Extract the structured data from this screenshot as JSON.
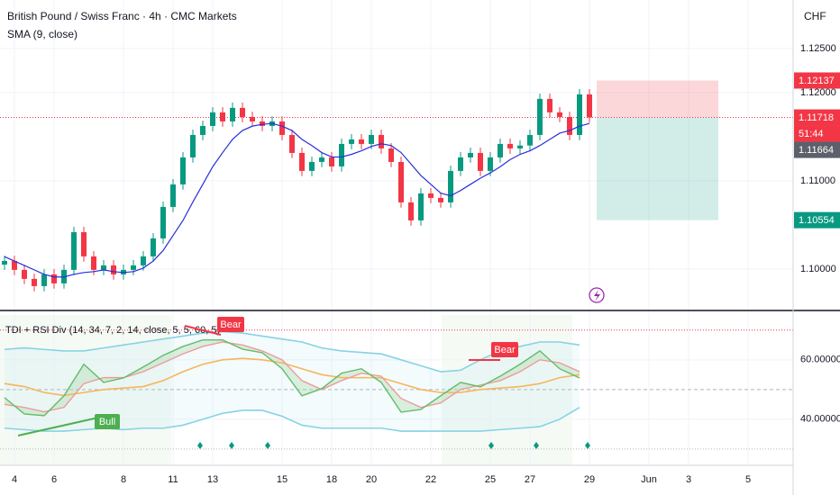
{
  "header": {
    "title": "British Pound / Swiss Franc · 4h · CMC Markets",
    "currency": "CHF"
  },
  "chart_data": [
    {
      "type": "candlestick",
      "categories": [
        null,
        "4",
        null,
        null,
        null,
        "6",
        null,
        null,
        null,
        null,
        null,
        null,
        "8",
        null,
        null,
        null,
        null,
        "11",
        null,
        null,
        null,
        "13",
        null,
        null,
        null,
        null,
        null,
        null,
        "15",
        null,
        null,
        null,
        null,
        "18",
        null,
        null,
        null,
        "20",
        null,
        null,
        null,
        null,
        null,
        "22",
        null,
        null,
        null,
        null,
        null,
        "25",
        null,
        null,
        null,
        "27",
        null,
        null,
        null,
        null,
        null,
        "29"
      ],
      "open": [
        1.1005,
        1.10092,
        1.0999,
        1.09888,
        1.09806,
        1.09939,
        1.09837,
        1.0999,
        1.10418,
        1.10143,
        1.0999,
        1.10041,
        1.09939,
        1.0999,
        1.10041,
        1.10143,
        1.10347,
        1.10704,
        1.10959,
        1.11265,
        1.1152,
        1.11622,
        1.11776,
        1.11673,
        1.11827,
        1.11724,
        1.11673,
        1.11622,
        1.11673,
        1.1152,
        1.11316,
        1.11112,
        1.11214,
        1.11265,
        1.11163,
        1.11418,
        1.11469,
        1.11418,
        1.1152,
        1.11367,
        1.11214,
        1.10755,
        1.10551,
        1.10857,
        1.10806,
        1.10755,
        1.11112,
        1.11265,
        1.11316,
        1.11112,
        1.11265,
        1.11418,
        1.11367,
        1.114,
        1.1152,
        1.11929,
        1.11776,
        1.11724,
        1.1152,
        1.1198
      ],
      "high": [
        1.10152,
        1.10152,
        1.1005,
        1.09948,
        1.09999,
        1.09999,
        1.1005,
        1.10478,
        1.10478,
        1.10203,
        1.10101,
        1.10101,
        1.1005,
        1.10101,
        1.10203,
        1.10407,
        1.10764,
        1.11019,
        1.11325,
        1.1158,
        1.11682,
        1.11836,
        1.11836,
        1.11887,
        1.11887,
        1.11784,
        1.11733,
        1.11733,
        1.11733,
        1.1158,
        1.11376,
        1.11274,
        1.11325,
        1.11325,
        1.11478,
        1.11529,
        1.11529,
        1.1158,
        1.1158,
        1.11427,
        1.11274,
        1.10815,
        1.10917,
        1.10917,
        1.10866,
        1.11172,
        1.11325,
        1.11376,
        1.11376,
        1.11325,
        1.11478,
        1.11478,
        1.1146,
        1.1158,
        1.11989,
        1.11989,
        1.11836,
        1.11784,
        1.1204,
        1.1204
      ],
      "low": [
        1.0999,
        1.0993,
        1.09828,
        1.09746,
        1.09746,
        1.09777,
        1.09777,
        1.0993,
        1.10083,
        1.0993,
        1.0993,
        1.09879,
        1.09879,
        1.0993,
        1.09981,
        1.10083,
        1.10287,
        1.10644,
        1.10899,
        1.11205,
        1.1146,
        1.11562,
        1.11613,
        1.11613,
        1.11664,
        1.11613,
        1.11562,
        1.11562,
        1.1146,
        1.11256,
        1.11052,
        1.11052,
        1.11154,
        1.11103,
        1.11103,
        1.11358,
        1.11358,
        1.11358,
        1.11307,
        1.11154,
        1.10695,
        1.10491,
        1.10491,
        1.10746,
        1.10695,
        1.10695,
        1.11052,
        1.11205,
        1.11052,
        1.11052,
        1.11205,
        1.11307,
        1.11307,
        1.1134,
        1.1146,
        1.11716,
        1.11664,
        1.1146,
        1.1146,
        1.11658
      ],
      "close": [
        1.10092,
        1.0999,
        1.09888,
        1.09806,
        1.09939,
        1.09837,
        1.0999,
        1.10418,
        1.10143,
        1.0999,
        1.10041,
        1.09939,
        1.0999,
        1.10041,
        1.10143,
        1.10347,
        1.10704,
        1.10959,
        1.11265,
        1.1152,
        1.11622,
        1.11776,
        1.11673,
        1.11827,
        1.11724,
        1.11673,
        1.11622,
        1.11673,
        1.1152,
        1.11316,
        1.11112,
        1.11214,
        1.11265,
        1.11163,
        1.11418,
        1.11469,
        1.11418,
        1.1152,
        1.11367,
        1.11214,
        1.10755,
        1.10551,
        1.10857,
        1.10806,
        1.10755,
        1.11112,
        1.11265,
        1.11316,
        1.11112,
        1.11265,
        1.11418,
        1.11367,
        1.114,
        1.1152,
        1.11929,
        1.11776,
        1.11724,
        1.1152,
        1.1198,
        1.11718
      ],
      "series": [
        {
          "name": "SMA (9, close)",
          "color": "#2a2edb",
          "values": [
            1.1014,
            1.1009,
            1.1004,
            1.0999,
            1.0994,
            1.0991,
            1.0991,
            1.0994,
            1.0996,
            1.0997,
            1.0999,
            1.0997,
            1.0996,
            1.0997,
            1.1001,
            1.1009,
            1.1021,
            1.1038,
            1.1055,
            1.1076,
            1.1096,
            1.1116,
            1.1132,
            1.1147,
            1.1157,
            1.1162,
            1.1164,
            1.1165,
            1.1162,
            1.1157,
            1.1147,
            1.114,
            1.1132,
            1.1127,
            1.1127,
            1.113,
            1.1134,
            1.1139,
            1.1142,
            1.114,
            1.1132,
            1.1119,
            1.1106,
            1.1096,
            1.1086,
            1.1083,
            1.1089,
            1.1096,
            1.1103,
            1.1109,
            1.1116,
            1.1124,
            1.113,
            1.1134,
            1.114,
            1.1147,
            1.1154,
            1.1157,
            1.1162,
            1.1165
          ]
        }
      ],
      "up_color": "#089981",
      "down_color": "#f23645",
      "ylim": [
        1.0955,
        1.1305
      ],
      "yticks": [
        {
          "value": 1.125,
          "label": "1.12500"
        },
        {
          "value": 1.12,
          "label": "1.12000"
        },
        {
          "value": 1.11,
          "label": "1.11000"
        },
        {
          "value": 1.1,
          "label": "1.10000"
        }
      ],
      "price_markers": [
        {
          "value": 1.12137,
          "color": "#f23645"
        },
        {
          "value": 1.11718,
          "color": "#f23645"
        },
        {
          "value": 1.11664,
          "color": "#5d606b"
        },
        {
          "value": 1.10554,
          "color": "#089981"
        }
      ],
      "countdown": "51:44",
      "future_labels": [
        "Jun",
        "3",
        "5"
      ]
    },
    {
      "type": "line",
      "title": "TDI + RSI Div (14, 34, 7, 2, 14, close, 5, 5, 60, 5)",
      "series": [
        {
          "color": "#86d3e3",
          "values": [
            63.5,
            64,
            63.5,
            63,
            63,
            64,
            65,
            66,
            67,
            68,
            69,
            69.5,
            69,
            68,
            67,
            66,
            64,
            63,
            62.5,
            62,
            60,
            58,
            56,
            56.5,
            60,
            63,
            64.5,
            66,
            66,
            65
          ]
        },
        {
          "color": "#86d3e3",
          "values": [
            37,
            36.5,
            36,
            36,
            36.5,
            37,
            36.5,
            37,
            37,
            38,
            40,
            42,
            43,
            43,
            41,
            38,
            37,
            37,
            37,
            37,
            36,
            36,
            36,
            36,
            36,
            36.5,
            37,
            37.5,
            40,
            44
          ]
        },
        {
          "color": "#f7b55a",
          "values": [
            52,
            51,
            49,
            48,
            49,
            50,
            50.5,
            51,
            53,
            56,
            58.5,
            60,
            60.5,
            60,
            59,
            57,
            55,
            54,
            54,
            54,
            52,
            50,
            49,
            49,
            50,
            50.5,
            51,
            52,
            54,
            55
          ]
        },
        {
          "color": "#ef9a9a",
          "values": [
            45,
            44,
            42.5,
            44,
            52,
            54,
            54,
            56,
            59,
            62,
            64.5,
            66,
            65,
            63,
            60,
            53,
            50,
            53,
            55.5,
            54.5,
            47,
            44,
            45.5,
            50,
            51.5,
            53,
            56,
            60,
            59,
            56
          ]
        },
        {
          "color": "#66bb6a",
          "values": [
            47.3,
            41.8,
            41.2,
            47.9,
            58.5,
            52.4,
            53.9,
            57.6,
            61.5,
            64.5,
            66.7,
            66.7,
            63.6,
            62.4,
            57.0,
            47.9,
            50.3,
            55.5,
            57.0,
            52.4,
            42.4,
            43.3,
            47.9,
            52.4,
            50.9,
            54.5,
            58.5,
            63.0,
            57.0,
            53.9
          ]
        }
      ],
      "ylim": [
        24.5,
        76
      ],
      "yticks": [
        {
          "value": 60,
          "label": "60.00000"
        },
        {
          "value": 40,
          "label": "40.00000"
        }
      ],
      "levels": [
        70,
        50,
        30
      ],
      "annotations": [
        "Bear",
        "Bear",
        "Bull"
      ]
    }
  ]
}
